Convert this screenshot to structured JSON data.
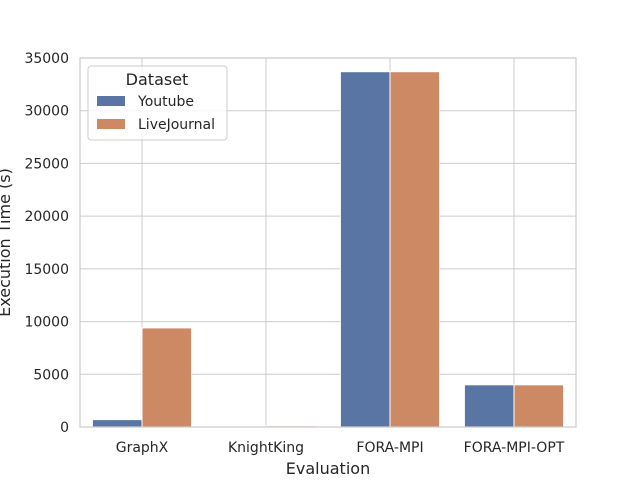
{
  "chart_data": {
    "type": "bar",
    "title": "",
    "xlabel": "Evaluation",
    "ylabel": "Execution Time (s)",
    "categories": [
      "GraphX",
      "KnightKing",
      "FORA-MPI",
      "FORA-MPI-OPT"
    ],
    "series": [
      {
        "name": "Youtube",
        "values": [
          700,
          60,
          33700,
          4000
        ]
      },
      {
        "name": "LiveJournal",
        "values": [
          9400,
          110,
          33700,
          4000
        ]
      }
    ],
    "ylim": [
      0,
      35000
    ],
    "yticks": [
      0,
      5000,
      10000,
      15000,
      20000,
      25000,
      30000,
      35000
    ],
    "grid": true,
    "legend": {
      "title": "Dataset",
      "placement": "top-left"
    },
    "colors": {
      "Youtube": "#5875a4",
      "LiveJournal": "#cc8963",
      "grid": "#cccccc",
      "spine": "#cccccc"
    }
  }
}
